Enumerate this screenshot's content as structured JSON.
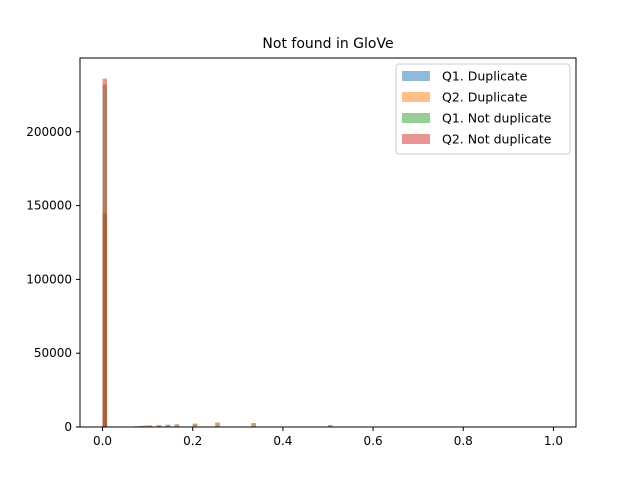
{
  "chart_data": {
    "type": "bar",
    "title": "Not found in GloVe",
    "xlabel": "",
    "ylabel": "",
    "xlim": [
      -0.05,
      1.05
    ],
    "ylim": [
      0,
      250000
    ],
    "xticks": [
      0.0,
      0.2,
      0.4,
      0.6,
      0.8,
      1.0
    ],
    "xtick_labels": [
      "0.0",
      "0.2",
      "0.4",
      "0.6",
      "0.8",
      "1.0"
    ],
    "yticks": [
      0,
      50000,
      100000,
      150000,
      200000
    ],
    "ytick_labels": [
      "0",
      "50000",
      "100000",
      "150000",
      "200000"
    ],
    "bin_width": 0.01,
    "grid": false,
    "legend_position": "top-right",
    "bar_alpha": 0.5,
    "series": [
      {
        "name": "Q1. Duplicate",
        "color": "#1f77b4",
        "x": [
          0.0,
          0.06,
          0.07,
          0.08,
          0.09,
          0.1,
          0.12,
          0.14,
          0.16,
          0.2,
          0.25,
          0.33,
          0.5
        ],
        "values": [
          145000,
          300,
          500,
          700,
          900,
          1100,
          1300,
          1500,
          1800,
          2200,
          2900,
          2600,
          1300
        ]
      },
      {
        "name": "Q2. Duplicate",
        "color": "#ff7f0e",
        "x": [
          0.0,
          0.06,
          0.07,
          0.08,
          0.09,
          0.1,
          0.12,
          0.14,
          0.16,
          0.2,
          0.25,
          0.33,
          0.5
        ],
        "values": [
          143000,
          300,
          500,
          700,
          900,
          1100,
          1300,
          1500,
          1800,
          2300,
          3000,
          2700,
          1300
        ]
      },
      {
        "name": "Q1. Not duplicate",
        "color": "#2ca02c",
        "x": [
          0.0
        ],
        "values": [
          232000
        ]
      },
      {
        "name": "Q2. Not duplicate",
        "color": "#d62728",
        "x": [
          0.0
        ],
        "values": [
          236000
        ]
      }
    ]
  }
}
